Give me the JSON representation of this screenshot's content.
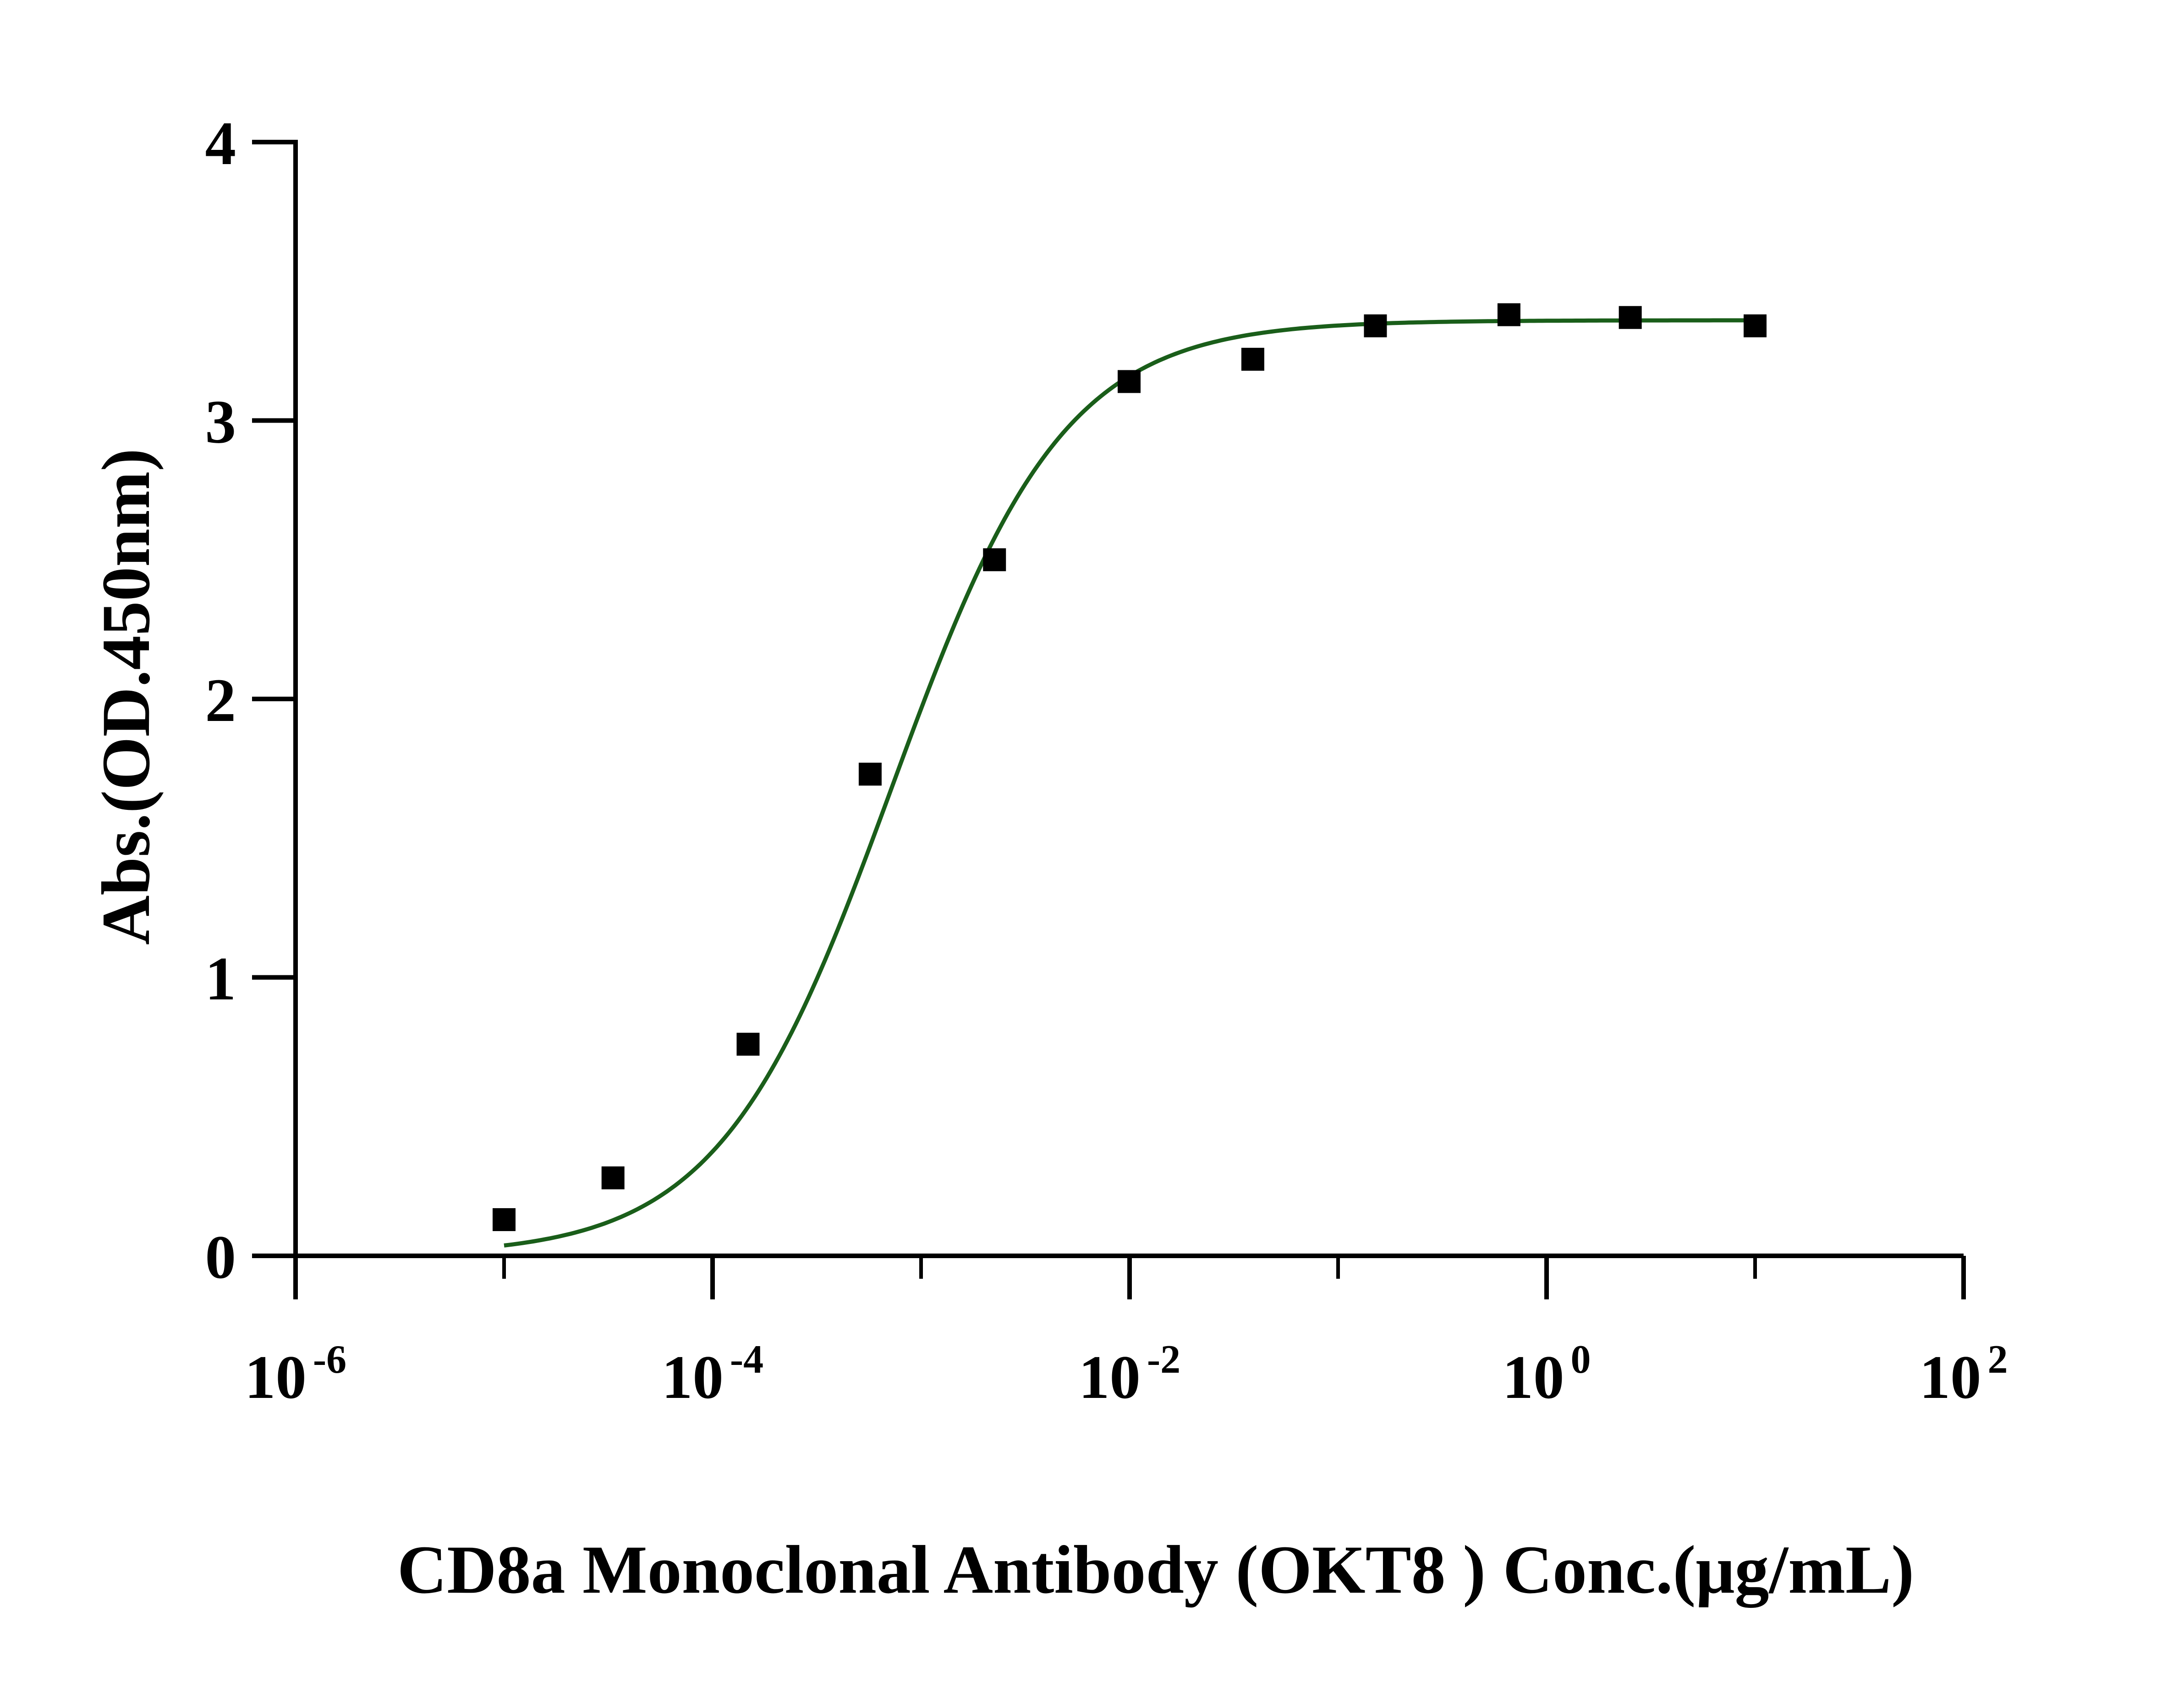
{
  "chart_data": {
    "type": "scatter",
    "xlabel": "CD8a Monoclonal Antibody (OKT8 ) Conc.(μg/mL)",
    "ylabel": "Abs.(OD.450nm)",
    "x_scale": "log",
    "xlim": [
      1e-06,
      100
    ],
    "ylim": [
      0,
      4
    ],
    "x_ticks": [
      {
        "value": 1e-06,
        "base": "10",
        "exp": "-6"
      },
      {
        "value": 0.0001,
        "base": "10",
        "exp": "-4"
      },
      {
        "value": 0.01,
        "base": "10",
        "exp": "-2"
      },
      {
        "value": 1,
        "base": "10",
        "exp": "0"
      },
      {
        "value": 100,
        "base": "10",
        "exp": "2"
      }
    ],
    "y_ticks": [
      {
        "value": 0,
        "label": "0"
      },
      {
        "value": 1,
        "label": "1"
      },
      {
        "value": 2,
        "label": "2"
      },
      {
        "value": 3,
        "label": "3"
      },
      {
        "value": 4,
        "label": "4"
      }
    ],
    "grid": false,
    "series": [
      {
        "marker": "square",
        "color": "#000000",
        "points": [
          {
            "x": 1e-05,
            "y": 0.13
          },
          {
            "x": 3.33e-05,
            "y": 0.28
          },
          {
            "x": 0.000148,
            "y": 0.76
          },
          {
            "x": 0.00057,
            "y": 1.73
          },
          {
            "x": 0.00225,
            "y": 2.5
          },
          {
            "x": 0.00995,
            "y": 3.14
          },
          {
            "x": 0.039,
            "y": 3.22
          },
          {
            "x": 0.151,
            "y": 3.34
          },
          {
            "x": 0.66,
            "y": 3.38
          },
          {
            "x": 2.52,
            "y": 3.37
          },
          {
            "x": 10.0,
            "y": 3.34
          }
        ]
      }
    ],
    "fit_curve": {
      "model": "4PL",
      "color": "#1a5e1a",
      "bottom": 0.0,
      "top": 3.36,
      "ec50": 0.000722,
      "hill": 1.05,
      "x_range": [
        1e-05,
        10.0
      ]
    }
  }
}
